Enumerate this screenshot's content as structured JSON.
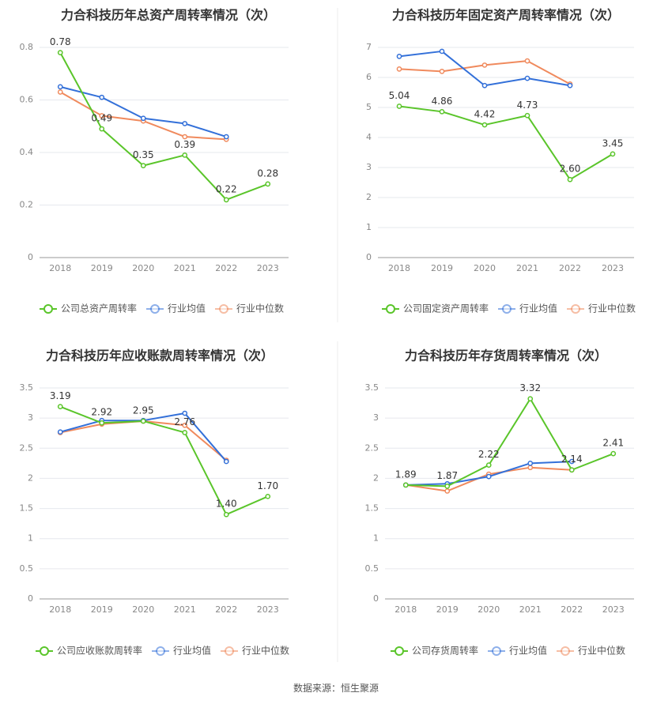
{
  "source_label": "数据来源：恒生聚源",
  "colors": {
    "company": "#5ac52a",
    "avg": "#3370d9",
    "median": "#f08a5d"
  },
  "chart_data": [
    {
      "type": "line",
      "title": "力合科技历年总资产周转率情况（次）",
      "x": [
        "2018",
        "2019",
        "2020",
        "2021",
        "2022",
        "2023"
      ],
      "ylim": [
        0,
        0.8
      ],
      "yticks": [
        "0",
        "0.2",
        "0.4",
        "0.6",
        "0.8"
      ],
      "grid": true,
      "legend_position": "bottom",
      "series": [
        {
          "name": "公司总资产周转率",
          "values": [
            0.78,
            0.49,
            0.35,
            0.39,
            0.22,
            0.28
          ],
          "labels": [
            "0.78",
            "0.49",
            "0.35",
            "0.39",
            "0.22",
            "0.28"
          ]
        },
        {
          "name": "行业均值",
          "values": [
            0.65,
            0.61,
            0.53,
            0.51,
            0.46,
            null
          ]
        },
        {
          "name": "行业中位数",
          "values": [
            0.63,
            0.54,
            0.52,
            0.46,
            0.45,
            null
          ]
        }
      ]
    },
    {
      "type": "line",
      "title": "力合科技历年固定资产周转率情况（次）",
      "x": [
        "2018",
        "2019",
        "2020",
        "2021",
        "2022",
        "2023"
      ],
      "ylim": [
        0,
        7
      ],
      "yticks": [
        "0",
        "1",
        "2",
        "3",
        "4",
        "5",
        "6",
        "7"
      ],
      "grid": true,
      "legend_position": "bottom",
      "series": [
        {
          "name": "公司固定资产周转率",
          "values": [
            5.04,
            4.86,
            4.42,
            4.73,
            2.6,
            3.45
          ],
          "labels": [
            "5.04",
            "4.86",
            "4.42",
            "4.73",
            "2.60",
            "3.45"
          ]
        },
        {
          "name": "行业均值",
          "values": [
            6.7,
            6.87,
            5.73,
            5.97,
            5.73,
            null
          ]
        },
        {
          "name": "行业中位数",
          "values": [
            6.28,
            6.2,
            6.41,
            6.55,
            5.78,
            null
          ]
        }
      ]
    },
    {
      "type": "line",
      "title": "力合科技历年应收账款周转率情况（次）",
      "x": [
        "2018",
        "2019",
        "2020",
        "2021",
        "2022",
        "2023"
      ],
      "ylim": [
        0,
        3.5
      ],
      "yticks": [
        "0",
        "0.5",
        "1",
        "1.5",
        "2",
        "2.5",
        "3",
        "3.5"
      ],
      "grid": true,
      "legend_position": "bottom",
      "series": [
        {
          "name": "公司应收账款周转率",
          "values": [
            3.19,
            2.92,
            2.95,
            2.76,
            1.4,
            1.7
          ],
          "labels": [
            "3.19",
            "2.92",
            "2.95",
            "2.76",
            "1.40",
            "1.70"
          ]
        },
        {
          "name": "行业均值",
          "values": [
            2.77,
            2.96,
            2.96,
            3.08,
            2.28,
            null
          ]
        },
        {
          "name": "行业中位数",
          "values": [
            2.76,
            2.9,
            2.95,
            2.88,
            2.3,
            null
          ]
        }
      ]
    },
    {
      "type": "line",
      "title": "力合科技历年存货周转率情况（次）",
      "x": [
        "2018",
        "2019",
        "2020",
        "2021",
        "2022",
        "2023"
      ],
      "ylim": [
        0,
        3.5
      ],
      "yticks": [
        "0",
        "0.5",
        "1",
        "1.5",
        "2",
        "2.5",
        "3",
        "3.5"
      ],
      "grid": true,
      "legend_position": "bottom",
      "series": [
        {
          "name": "公司存货周转率",
          "values": [
            1.89,
            1.87,
            2.22,
            3.32,
            2.14,
            2.41
          ],
          "labels": [
            "1.89",
            "1.87",
            "2.22",
            "3.32",
            "2.14",
            "2.41"
          ]
        },
        {
          "name": "行业均值",
          "values": [
            1.89,
            1.91,
            2.03,
            2.25,
            2.28,
            null
          ]
        },
        {
          "name": "行业中位数",
          "values": [
            1.89,
            1.79,
            2.07,
            2.18,
            2.14,
            null
          ]
        }
      ]
    }
  ]
}
